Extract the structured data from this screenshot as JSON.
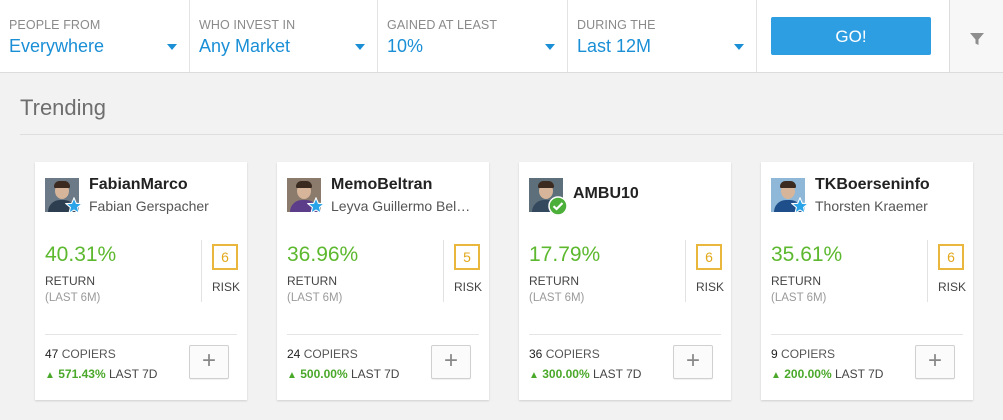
{
  "filters": [
    {
      "label": "PEOPLE FROM",
      "value": "Everywhere"
    },
    {
      "label": "WHO INVEST IN",
      "value": "Any Market"
    },
    {
      "label": "GAINED AT LEAST",
      "value": "10%"
    },
    {
      "label": "DURING THE",
      "value": "Last 12M"
    }
  ],
  "go_label": "GO!",
  "filter_icon": "funnel-icon",
  "section_title": "Trending",
  "labels": {
    "return": "RETURN",
    "period": "(LAST 6M)",
    "risk": "RISK",
    "copiers": "COPIERS",
    "last7d": "LAST 7D",
    "add": "+"
  },
  "colors": {
    "accent": "#2e9ee3",
    "gain": "#5cb82e",
    "risk": "#e8b73c"
  },
  "cards": [
    {
      "username": "FabianMarco",
      "fullname": "Fabian Gerspacher",
      "return": "40.31%",
      "risk": "6",
      "copiers": "47",
      "gain": "571.43%",
      "badge": "star"
    },
    {
      "username": "MemoBeltran",
      "fullname": "Leyva Guillermo Bel…",
      "return": "36.96%",
      "risk": "5",
      "copiers": "24",
      "gain": "500.00%",
      "badge": "star"
    },
    {
      "username": "AMBU10",
      "fullname": "",
      "return": "17.79%",
      "risk": "6",
      "copiers": "36",
      "gain": "300.00%",
      "badge": "verified"
    },
    {
      "username": "TKBoerseninfo",
      "fullname": "Thorsten Kraemer",
      "return": "35.61%",
      "risk": "6",
      "copiers": "9",
      "gain": "200.00%",
      "badge": "star"
    }
  ]
}
